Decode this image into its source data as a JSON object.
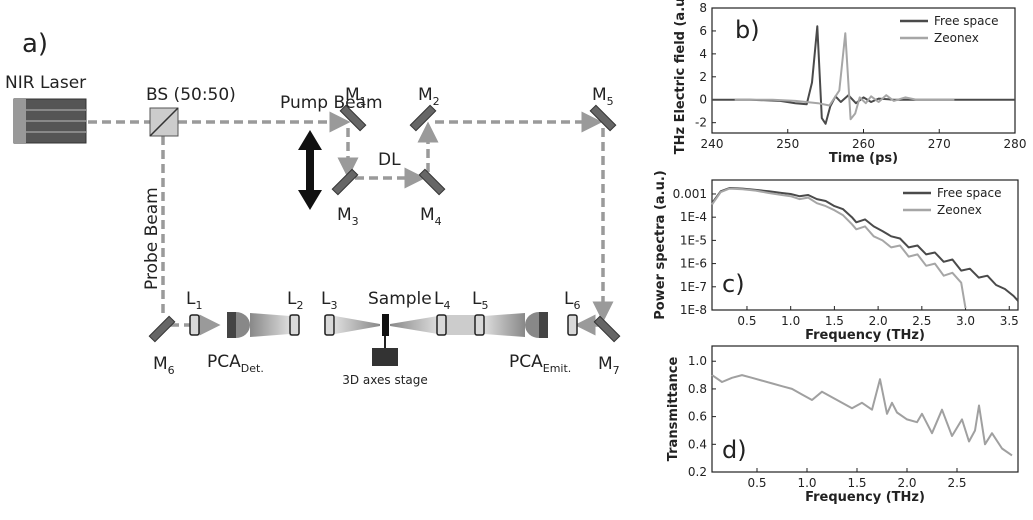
{
  "diagram": {
    "panel_label": "a)",
    "laser": "NIR Laser",
    "splitter": "BS (50:50)",
    "pump_beam": "Pump Beam",
    "probe_beam": "Probe Beam",
    "delay_line": "DL",
    "sample": "Sample",
    "stage": "3D axes stage",
    "mirrors": [
      {
        "main": "M",
        "sub": "1"
      },
      {
        "main": "M",
        "sub": "2"
      },
      {
        "main": "M",
        "sub": "3"
      },
      {
        "main": "M",
        "sub": "4"
      },
      {
        "main": "M",
        "sub": "5"
      },
      {
        "main": "M",
        "sub": "6"
      },
      {
        "main": "M",
        "sub": "7"
      }
    ],
    "lenses": [
      {
        "main": "L",
        "sub": "1"
      },
      {
        "main": "L",
        "sub": "2"
      },
      {
        "main": "L",
        "sub": "3"
      },
      {
        "main": "L",
        "sub": "4"
      },
      {
        "main": "L",
        "sub": "5"
      },
      {
        "main": "L",
        "sub": "6"
      }
    ],
    "detector": {
      "main": "PCA",
      "sub": "Det."
    },
    "emitter": {
      "main": "PCA",
      "sub": "Emit."
    }
  },
  "chart_data": [
    {
      "type": "line",
      "panel_label": "b)",
      "xlabel": "Time (ps)",
      "ylabel": "THz Electric field (a.u.)",
      "xlim": [
        240,
        280
      ],
      "xticks": [
        240,
        250,
        260,
        270,
        280
      ],
      "ylim": [
        -2.9,
        8
      ],
      "yticks": [
        -2,
        0,
        2,
        4,
        6,
        8
      ],
      "legend": "upper right",
      "series": [
        {
          "name": "Free space",
          "color": "#4a4a4a",
          "x": [
            240,
            245,
            249,
            251,
            252.5,
            253.2,
            253.9,
            254.5,
            255.0,
            255.6,
            256.3,
            257,
            258,
            259,
            260,
            261,
            262,
            264,
            280
          ],
          "values": [
            0,
            0,
            -0.1,
            -0.3,
            -0.4,
            1.5,
            6.4,
            -1.6,
            -2.1,
            -0.6,
            0.3,
            -0.2,
            0.4,
            -0.3,
            0.2,
            -0.2,
            0.1,
            0,
            0
          ]
        },
        {
          "name": "Zeonex",
          "color": "#a6a6a6",
          "x": [
            243,
            248,
            251,
            254,
            255.5,
            256.8,
            257.6,
            258.3,
            258.9,
            259.5,
            260.3,
            261,
            262,
            263,
            264,
            265.5,
            267,
            269,
            272
          ],
          "values": [
            0,
            0,
            -0.1,
            -0.3,
            -0.5,
            0.8,
            5.8,
            -1.7,
            -1.2,
            0.2,
            -0.3,
            0.3,
            -0.2,
            0.4,
            -0.1,
            0.2,
            0,
            0,
            0
          ]
        }
      ]
    },
    {
      "type": "line",
      "panel_label": "c)",
      "xlabel": "Frequency (THz)",
      "ylabel": "Power spectra (a.u.)",
      "log_y": true,
      "xlim": [
        0.1,
        3.6
      ],
      "xticks": [
        0.5,
        {
          "value": 1,
          "label": "1.0"
        },
        1.5,
        {
          "value": 2,
          "label": "2.0"
        },
        2.5,
        {
          "value": 3,
          "label": "3.0"
        },
        3.5
      ],
      "ylim": [
        1e-08,
        0.004
      ],
      "yticks": [
        0.001,
        {
          "value": 0.0001,
          "label": "1E-4"
        },
        {
          "value": 1e-05,
          "label": "1E-5"
        },
        {
          "value": 1e-06,
          "label": "1E-6"
        },
        {
          "value": 1e-07,
          "label": "1E-7"
        },
        {
          "value": 1e-08,
          "label": "1E-8"
        }
      ],
      "legend": "upper right",
      "series": [
        {
          "name": "Free space",
          "color": "#4a4a4a",
          "x": [
            0.1,
            0.2,
            0.3,
            0.45,
            0.6,
            0.75,
            0.9,
            1.0,
            1.1,
            1.2,
            1.3,
            1.4,
            1.5,
            1.6,
            1.7,
            1.75,
            1.85,
            1.95,
            2.05,
            2.15,
            2.25,
            2.35,
            2.45,
            2.55,
            2.65,
            2.75,
            2.85,
            2.95,
            3.05,
            3.15,
            3.25,
            3.35,
            3.45,
            3.55,
            3.6
          ],
          "values": [
            0.0004,
            0.0013,
            0.0018,
            0.0017,
            0.0015,
            0.0013,
            0.0011,
            0.001,
            0.0008,
            0.0009,
            0.0006,
            0.0005,
            0.0003,
            0.00022,
            0.0001,
            6e-05,
            8e-05,
            4e-05,
            2.5e-05,
            1.5e-05,
            1.2e-05,
            5e-06,
            6e-06,
            2.5e-06,
            3e-06,
            1.2e-06,
            1.5e-06,
            5e-07,
            6e-07,
            2.5e-07,
            3e-07,
            1.2e-07,
            8e-08,
            4e-08,
            2.5e-08
          ]
        },
        {
          "name": "Zeonex",
          "color": "#a6a6a6",
          "x": [
            0.1,
            0.2,
            0.3,
            0.45,
            0.6,
            0.75,
            0.9,
            1.0,
            1.1,
            1.2,
            1.3,
            1.4,
            1.5,
            1.6,
            1.7,
            1.75,
            1.85,
            1.95,
            2.05,
            2.15,
            2.25,
            2.35,
            2.45,
            2.55,
            2.65,
            2.75,
            2.85,
            2.95,
            3.0
          ],
          "values": [
            0.00035,
            0.0012,
            0.0017,
            0.0016,
            0.0014,
            0.0011,
            0.0009,
            0.0008,
            0.0006,
            0.0007,
            0.0004,
            0.0003,
            0.0002,
            0.00012,
            5e-05,
            3e-05,
            4e-05,
            1.5e-05,
            1e-05,
            5e-06,
            6e-06,
            2e-06,
            2.5e-06,
            8e-07,
            1e-06,
            3e-07,
            4e-07,
            1.5e-07,
            1.2e-08
          ]
        }
      ]
    },
    {
      "type": "line",
      "panel_label": "d)",
      "xlabel": "Frequency (THz)",
      "ylabel": "Transmittance",
      "xlim": [
        0.05,
        3.11
      ],
      "xticks": [
        0.5,
        {
          "value": 1,
          "label": "1.0"
        },
        1.5,
        {
          "value": 2,
          "label": "2.0"
        },
        2.5
      ],
      "ylim": [
        0.2,
        1.11
      ],
      "yticks": [
        0.2,
        0.4,
        0.6,
        0.8,
        {
          "value": 1,
          "label": "1.0"
        }
      ],
      "series": [
        {
          "color": "#a0a0a0",
          "x": [
            0.05,
            0.15,
            0.25,
            0.35,
            0.45,
            0.55,
            0.65,
            0.75,
            0.85,
            0.95,
            1.05,
            1.15,
            1.25,
            1.35,
            1.45,
            1.55,
            1.65,
            1.73,
            1.8,
            1.85,
            1.9,
            2.0,
            2.1,
            2.15,
            2.25,
            2.35,
            2.45,
            2.55,
            2.62,
            2.68,
            2.72,
            2.78,
            2.85,
            2.95,
            3.05
          ],
          "values": [
            0.9,
            0.85,
            0.88,
            0.9,
            0.88,
            0.86,
            0.84,
            0.82,
            0.8,
            0.76,
            0.72,
            0.78,
            0.74,
            0.7,
            0.66,
            0.7,
            0.65,
            0.87,
            0.62,
            0.7,
            0.63,
            0.58,
            0.56,
            0.62,
            0.48,
            0.65,
            0.46,
            0.58,
            0.42,
            0.5,
            0.68,
            0.4,
            0.48,
            0.37,
            0.32
          ]
        }
      ]
    }
  ]
}
